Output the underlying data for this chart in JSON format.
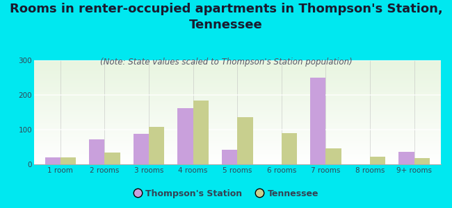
{
  "title": "Rooms in renter-occupied apartments in Thompson's Station,\nTennessee",
  "subtitle": "(Note: State values scaled to Thompson's Station population)",
  "categories": [
    "1 room",
    "2 rooms",
    "3 rooms",
    "4 rooms",
    "5 rooms",
    "6 rooms",
    "7 rooms",
    "8 rooms",
    "9+ rooms"
  ],
  "thompson_values": [
    20,
    72,
    88,
    163,
    43,
    0,
    250,
    0,
    37
  ],
  "tennessee_values": [
    20,
    35,
    108,
    185,
    137,
    90,
    47,
    22,
    18
  ],
  "thompson_color": "#c9a0dc",
  "tennessee_color": "#c8cf8e",
  "background_outer": "#00e8f0",
  "ylim": [
    0,
    300
  ],
  "yticks": [
    0,
    100,
    200,
    300
  ],
  "bar_width": 0.35,
  "legend_thompson": "Thompson's Station",
  "legend_tennessee": "Tennessee",
  "title_fontsize": 13,
  "subtitle_fontsize": 8.5,
  "tick_fontsize": 7.5,
  "title_color": "#1a1a2e",
  "tick_color": "#334455"
}
